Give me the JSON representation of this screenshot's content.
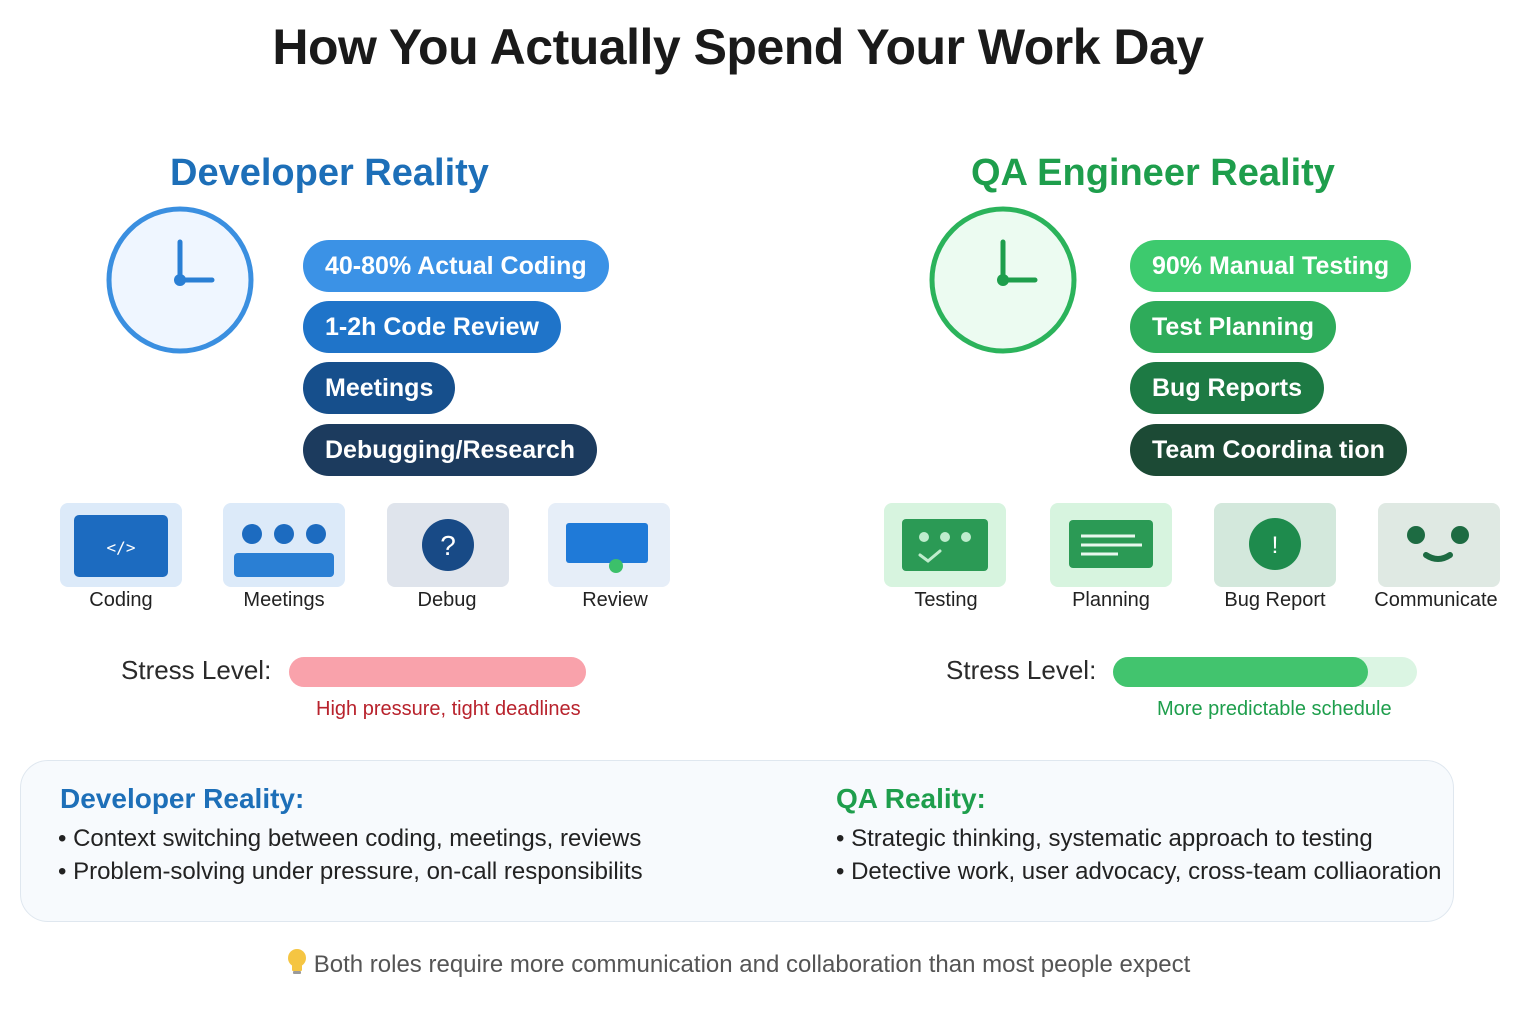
{
  "title": "How You Actually Spend Your Work Day",
  "developer": {
    "heading": "Developer Reality",
    "color": "#1d6fb8",
    "pills": [
      {
        "label": "40-80% Actual Coding",
        "color": "#3b92e6"
      },
      {
        "label": "1-2h Code Review",
        "color": "#1f74c9"
      },
      {
        "label": "Meetings",
        "color": "#164f8c"
      },
      {
        "label": "Debugging/Research",
        "color": "#1c3b5e"
      }
    ],
    "activities": [
      {
        "label": "Coding",
        "icon": "code-icon",
        "code_glyph": "</>"
      },
      {
        "label": "Meetings",
        "icon": "meeting-icon"
      },
      {
        "label": "Debug",
        "icon": "question-icon",
        "glyph": "?"
      },
      {
        "label": "Review",
        "icon": "monitor-icon"
      }
    ],
    "stress": {
      "label": "Stress Level:",
      "level": 1.0,
      "fill_color": "#f9a2ab",
      "track_color": "#fde3e6",
      "note": "High pressure, tight deadlines",
      "note_color": "#b8222c"
    }
  },
  "qa": {
    "heading": "QA Engineer Reality",
    "color": "#1e9e4c",
    "pills": [
      {
        "label": "90% Manual Testing",
        "color": "#3dca6e"
      },
      {
        "label": "Test Planning",
        "color": "#2eab5a"
      },
      {
        "label": "Bug Reports",
        "color": "#1d7a44"
      },
      {
        "label": "Team Coordina tion",
        "color": "#1c4a35"
      }
    ],
    "activities": [
      {
        "label": "Testing",
        "icon": "test-screen-icon"
      },
      {
        "label": "Planning",
        "icon": "document-icon"
      },
      {
        "label": "Bug Report",
        "icon": "alert-icon",
        "glyph": "!"
      },
      {
        "label": "Communicate",
        "icon": "smile-icon"
      }
    ],
    "stress": {
      "label": "Stress Level:",
      "level": 0.84,
      "fill_color": "#42c46e",
      "track_color": "#dbf5e3",
      "note": "More predictable schedule",
      "note_color": "#1e9e4c"
    }
  },
  "summary": {
    "developer": {
      "title": "Developer Reality:",
      "points": [
        "• Context switching between coding, meetings, reviews",
        "• Problem-solving under pressure, on-call responsibilits"
      ]
    },
    "qa": {
      "title": "QA Reality:",
      "points": [
        "• Strategic thinking, systematic approach to testing",
        "• Detective work, user advocacy, cross-team colliaoration"
      ]
    }
  },
  "footer": {
    "icon": "lightbulb-icon",
    "text": "Both roles require more communication and collaboration than most people expect"
  }
}
